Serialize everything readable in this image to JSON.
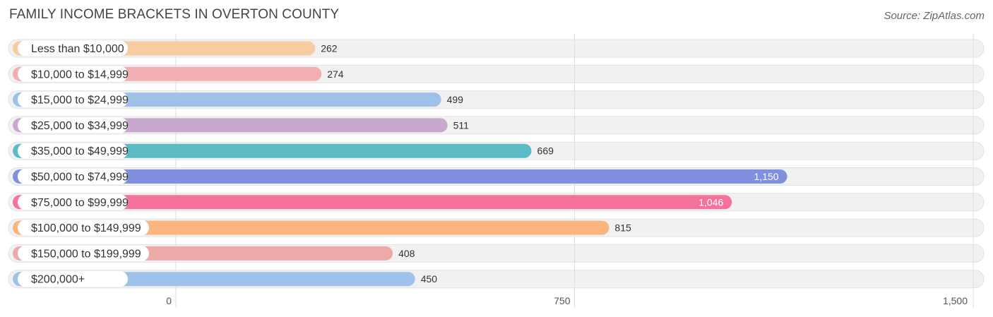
{
  "header": {
    "title": "FAMILY INCOME BRACKETS IN OVERTON COUNTY",
    "source": "Source: ZipAtlas.com"
  },
  "chart_data": {
    "type": "bar",
    "orientation": "horizontal",
    "title": "FAMILY INCOME BRACKETS IN OVERTON COUNTY",
    "xlabel": "",
    "ylabel": "",
    "xlim": [
      0,
      1500
    ],
    "ticks": [
      0,
      750,
      1500
    ],
    "tick_labels": [
      "0",
      "750",
      "1,500"
    ],
    "grid": true,
    "categories": [
      "Less than $10,000",
      "$10,000 to $14,999",
      "$15,000 to $24,999",
      "$25,000 to $34,999",
      "$35,000 to $49,999",
      "$50,000 to $74,999",
      "$75,000 to $99,999",
      "$100,000 to $149,999",
      "$150,000 to $199,999",
      "$200,000+"
    ],
    "values": [
      262,
      274,
      499,
      511,
      669,
      1150,
      1046,
      815,
      408,
      450
    ],
    "value_labels": [
      "262",
      "274",
      "499",
      "511",
      "669",
      "1,150",
      "1,046",
      "815",
      "408",
      "450"
    ],
    "colors": [
      "#f9cba0",
      "#f2aeb0",
      "#9ec0e9",
      "#c9a8cf",
      "#5bbcc6",
      "#8090de",
      "#f4739b",
      "#f9b57d",
      "#eda9a8",
      "#9fc2ea"
    ]
  }
}
